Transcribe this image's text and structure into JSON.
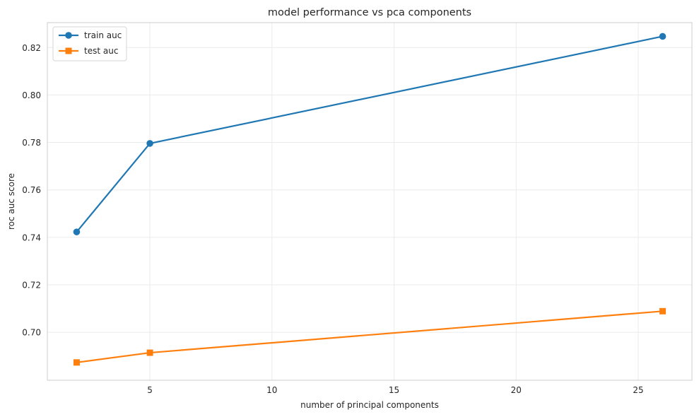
{
  "chart_data": {
    "type": "line",
    "title": "model performance vs pca components",
    "xlabel": "number of principal components",
    "ylabel": "roc auc score",
    "x": [
      2,
      5,
      26
    ],
    "xlim": [
      0.8,
      27.2
    ],
    "ylim": [
      0.6798,
      0.8305
    ],
    "xticks": [
      5,
      10,
      15,
      20,
      25
    ],
    "xtick_labels": [
      "5",
      "10",
      "15",
      "20",
      "25"
    ],
    "yticks": [
      0.7,
      0.72,
      0.74,
      0.76,
      0.78,
      0.8,
      0.82
    ],
    "ytick_labels": [
      "0.70",
      "0.72",
      "0.74",
      "0.76",
      "0.78",
      "0.80",
      "0.82"
    ],
    "grid": true,
    "legend_position": "top-left",
    "series": [
      {
        "name": "train auc",
        "values": [
          0.7423,
          0.7796,
          0.8247
        ],
        "color": "#1f77b4",
        "marker": "circle"
      },
      {
        "name": "test auc",
        "values": [
          0.6873,
          0.6914,
          0.7089
        ],
        "color": "#ff7f0e",
        "marker": "square"
      }
    ]
  }
}
